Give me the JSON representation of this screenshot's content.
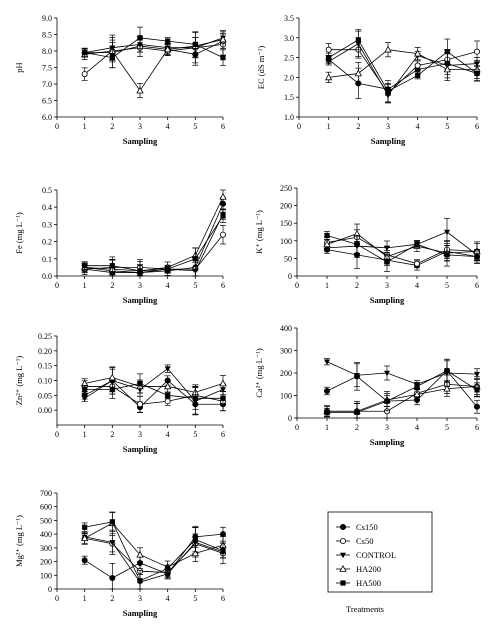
{
  "legend": {
    "title": "Treatments",
    "items": [
      {
        "name": "Cs150",
        "marker": "circle-filled"
      },
      {
        "name": "Cs50",
        "marker": "circle-open"
      },
      {
        "name": "CONTROL",
        "marker": "triangle-down-filled"
      },
      {
        "name": "HA200",
        "marker": "triangle-up-open"
      },
      {
        "name": "HA500",
        "marker": "square-filled"
      }
    ]
  },
  "chart_data": [
    {
      "type": "line",
      "id": "ph",
      "ylabel": "pH",
      "xlabel": "Sampling",
      "xlim": [
        0,
        6
      ],
      "ylim": [
        6.0,
        9.0
      ],
      "xticks": [
        "0",
        "1",
        "2",
        "3",
        "4",
        "5",
        "6"
      ],
      "yticks": [
        "6.0",
        "6.5",
        "7.0",
        "7.5",
        "8.0",
        "8.5",
        "9.0"
      ],
      "x": [
        1,
        2,
        3,
        4,
        5,
        6
      ],
      "series": [
        {
          "name": "Cs150",
          "values": [
            7.95,
            7.95,
            8.15,
            8.05,
            7.9,
            8.3
          ]
        },
        {
          "name": "Cs50",
          "values": [
            7.3,
            8.0,
            8.1,
            8.0,
            8.1,
            8.2
          ]
        },
        {
          "name": "CONTROL",
          "values": [
            7.95,
            8.1,
            8.2,
            8.1,
            8.1,
            8.4
          ]
        },
        {
          "name": "HA200",
          "values": [
            7.9,
            8.0,
            6.8,
            8.05,
            8.15,
            8.35
          ]
        },
        {
          "name": "HA500",
          "values": [
            7.95,
            7.8,
            8.4,
            8.3,
            8.2,
            7.8
          ]
        }
      ]
    },
    {
      "type": "line",
      "id": "ec",
      "ylabel": "EC (dS m⁻¹)",
      "xlabel": "Sampling",
      "xlim": [
        0,
        6
      ],
      "ylim": [
        1.0,
        3.5
      ],
      "xticks": [
        "0",
        "1",
        "2",
        "3",
        "4",
        "5",
        "6"
      ],
      "yticks": [
        "1.0",
        "1.5",
        "2.0",
        "2.5",
        "3.0",
        "3.5"
      ],
      "x": [
        1,
        2,
        3,
        4,
        5,
        6
      ],
      "series": [
        {
          "name": "Cs150",
          "values": [
            2.45,
            1.85,
            1.7,
            2.2,
            2.35,
            2.1
          ]
        },
        {
          "name": "Cs50",
          "values": [
            2.7,
            2.7,
            1.6,
            2.3,
            2.45,
            2.65
          ]
        },
        {
          "name": "CONTROL",
          "values": [
            2.4,
            2.85,
            1.55,
            2.55,
            2.3,
            2.35
          ]
        },
        {
          "name": "HA200",
          "values": [
            2.0,
            2.1,
            2.7,
            2.6,
            2.2,
            2.2
          ]
        },
        {
          "name": "HA500",
          "values": [
            2.5,
            2.95,
            1.65,
            2.05,
            2.65,
            2.1
          ]
        }
      ]
    },
    {
      "type": "line",
      "id": "fe",
      "ylabel": "Fe (mg L⁻¹)",
      "xlabel": "Sampling",
      "xlim": [
        0,
        6
      ],
      "ylim": [
        0.0,
        0.5
      ],
      "xticks": [
        "0",
        "1",
        "2",
        "3",
        "4",
        "5",
        "6"
      ],
      "yticks": [
        "0.0",
        "0.1",
        "0.2",
        "0.3",
        "0.4",
        "0.5"
      ],
      "x": [
        1,
        2,
        3,
        4,
        5,
        6
      ],
      "series": [
        {
          "name": "Cs150",
          "values": [
            0.04,
            0.02,
            0.02,
            0.03,
            0.05,
            0.42
          ]
        },
        {
          "name": "Cs50",
          "values": [
            0.04,
            0.05,
            0.05,
            0.04,
            0.04,
            0.24
          ]
        },
        {
          "name": "CONTROL",
          "values": [
            0.05,
            0.03,
            0.02,
            0.04,
            0.03,
            0.36
          ]
        },
        {
          "name": "HA200",
          "values": [
            0.05,
            0.04,
            0.03,
            0.05,
            0.12,
            0.46
          ]
        },
        {
          "name": "HA500",
          "values": [
            0.06,
            0.06,
            0.03,
            0.04,
            0.1,
            0.35
          ]
        }
      ]
    },
    {
      "type": "line",
      "id": "k",
      "ylabel": "K⁺ (mg L⁻¹)",
      "xlabel": "Sampling",
      "xlim": [
        0,
        6
      ],
      "ylim": [
        0,
        250
      ],
      "xticks": [
        "0",
        "1",
        "2",
        "3",
        "4",
        "5",
        "6"
      ],
      "yticks": [
        "0",
        "50",
        "100",
        "150",
        "200",
        "250"
      ],
      "x": [
        1,
        2,
        3,
        4,
        5,
        6
      ],
      "series": [
        {
          "name": "Cs150",
          "values": [
            75,
            60,
            45,
            30,
            70,
            55
          ]
        },
        {
          "name": "Cs50",
          "values": [
            95,
            110,
            60,
            35,
            75,
            70
          ]
        },
        {
          "name": "CONTROL",
          "values": [
            80,
            85,
            80,
            90,
            125,
            60
          ]
        },
        {
          "name": "HA200",
          "values": [
            90,
            120,
            55,
            85,
            65,
            70
          ]
        },
        {
          "name": "HA500",
          "values": [
            115,
            90,
            40,
            90,
            60,
            55
          ]
        }
      ]
    },
    {
      "type": "line",
      "id": "zn",
      "ylabel": "Zn²⁺ (mg L⁻¹)",
      "xlabel": "Sampling",
      "xlim": [
        0,
        6
      ],
      "ylim": [
        -0.05,
        0.25
      ],
      "xticks": [
        "0",
        "1",
        "2",
        "3",
        "4",
        "5",
        "6"
      ],
      "yticks": [
        "0.00",
        "0.05",
        "0.10",
        "0.15",
        "0.20",
        "0.25"
      ],
      "x": [
        1,
        2,
        3,
        4,
        5,
        6
      ],
      "series": [
        {
          "name": "Cs150",
          "values": [
            0.05,
            0.1,
            0.01,
            0.1,
            0.02,
            0.02
          ]
        },
        {
          "name": "Cs50",
          "values": [
            0.08,
            0.08,
            0.02,
            0.03,
            0.05,
            0.03
          ]
        },
        {
          "name": "CONTROL",
          "values": [
            0.04,
            0.1,
            0.07,
            0.14,
            0.03,
            0.07
          ]
        },
        {
          "name": "HA200",
          "values": [
            0.09,
            0.11,
            0.08,
            0.08,
            0.06,
            0.09
          ]
        },
        {
          "name": "HA500",
          "values": [
            0.07,
            0.07,
            0.09,
            0.05,
            0.04,
            0.04
          ]
        }
      ]
    },
    {
      "type": "line",
      "id": "ca",
      "ylabel": "Ca²⁺ (mg L⁻¹)",
      "xlabel": "Sampling",
      "xlim": [
        0,
        6
      ],
      "ylim": [
        0,
        400
      ],
      "xticks": [
        "0",
        "1",
        "2",
        "3",
        "4",
        "5",
        "6"
      ],
      "yticks": [
        "0",
        "100",
        "200",
        "300",
        "400"
      ],
      "x": [
        1,
        2,
        3,
        4,
        5,
        6
      ],
      "series": [
        {
          "name": "Cs150",
          "values": [
            120,
            185,
            75,
            80,
            210,
            50
          ]
        },
        {
          "name": "Cs50",
          "values": [
            30,
            30,
            30,
            110,
            150,
            140
          ]
        },
        {
          "name": "CONTROL",
          "values": [
            250,
            190,
            200,
            150,
            200,
            195
          ]
        },
        {
          "name": "HA200",
          "values": [
            30,
            30,
            80,
            105,
            130,
            140
          ]
        },
        {
          "name": "HA500",
          "values": [
            25,
            25,
            75,
            140,
            210,
            125
          ]
        }
      ]
    },
    {
      "type": "line",
      "id": "mg",
      "ylabel": "Mg²⁺ (mg L⁻¹)",
      "xlabel": "Sampling",
      "xlim": [
        0,
        6
      ],
      "ylim": [
        0,
        700
      ],
      "xticks": [
        "0",
        "1",
        "2",
        "3",
        "4",
        "5",
        "6"
      ],
      "yticks": [
        "0",
        "100",
        "200",
        "300",
        "400",
        "500",
        "600",
        "700"
      ],
      "x": [
        1,
        2,
        3,
        4,
        5,
        6
      ],
      "series": [
        {
          "name": "Cs150",
          "values": [
            210,
            80,
            190,
            110,
            380,
            400
          ]
        },
        {
          "name": "Cs50",
          "values": [
            370,
            330,
            130,
            120,
            330,
            260
          ]
        },
        {
          "name": "CONTROL",
          "values": [
            380,
            340,
            50,
            110,
            340,
            270
          ]
        },
        {
          "name": "HA200",
          "values": [
            370,
            480,
            250,
            160,
            260,
            320
          ]
        },
        {
          "name": "HA500",
          "values": [
            450,
            490,
            60,
            150,
            360,
            280
          ]
        }
      ]
    }
  ]
}
